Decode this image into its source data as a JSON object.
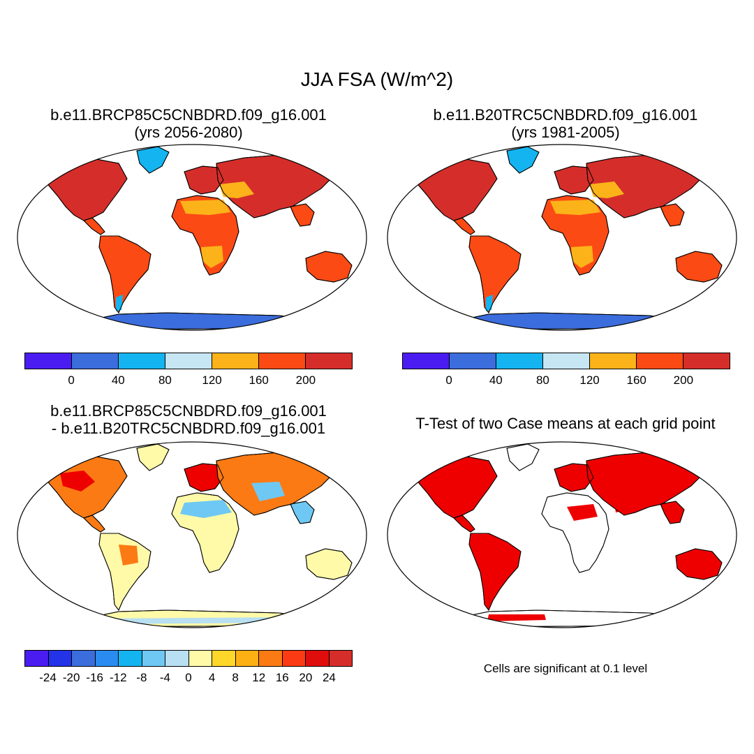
{
  "title": "JJA FSA (W/m^2)",
  "panels": [
    {
      "title_line1": "b.e11.BRCP85C5CNBDRD.f09_g16.001",
      "title_line2": "(yrs 2056-2080)"
    },
    {
      "title_line1": "b.e11.B20TRC5CNBDRD.f09_g16.001",
      "title_line2": "(yrs 1981-2005)"
    },
    {
      "title_line1": "b.e11.BRCP85C5CNBDRD.f09_g16.001",
      "title_line2": "- b.e11.B20TRC5CNBDRD.f09_g16.001"
    },
    {
      "title_line1": "T-Test of two Case means at each grid point",
      "note": "Cells are significant at 0.1 level"
    }
  ],
  "colorbars": {
    "absolute": {
      "colors": [
        "#4a1cf2",
        "#3b6ddc",
        "#14b4f0",
        "#c6e6f4",
        "#fbb319",
        "#fc4a14",
        "#d52e2a"
      ],
      "labels": [
        "0",
        "40",
        "80",
        "120",
        "160",
        "200"
      ]
    },
    "difference": {
      "colors": [
        "#4a1cf2",
        "#2233e8",
        "#3b6ddc",
        "#2a8cf0",
        "#14b4f0",
        "#6fc8f4",
        "#b8dff2",
        "#fffaa8",
        "#ffd72a",
        "#fcb014",
        "#fc7a14",
        "#fc3a14",
        "#e00d0d",
        "#d52e2a"
      ],
      "labels": [
        "-24",
        "-20",
        "-16",
        "-12",
        "-8",
        "-4",
        "0",
        "4",
        "8",
        "12",
        "16",
        "20",
        "24"
      ]
    }
  },
  "map_colors": {
    "ocean": "#ffffff",
    "outline": "#000000",
    "antarctica_abs": "#3b6ddc",
    "greenland_abs": "#14b4f0",
    "tropics_abs": "#fc4a14",
    "midlat_abs": "#d52e2a",
    "desert_abs": "#fbb319",
    "diff_pos": "#fc7a14",
    "diff_neg": "#6fc8f4",
    "diff_neutral": "#fffaa8",
    "ttest_sig": "#ee0000"
  }
}
